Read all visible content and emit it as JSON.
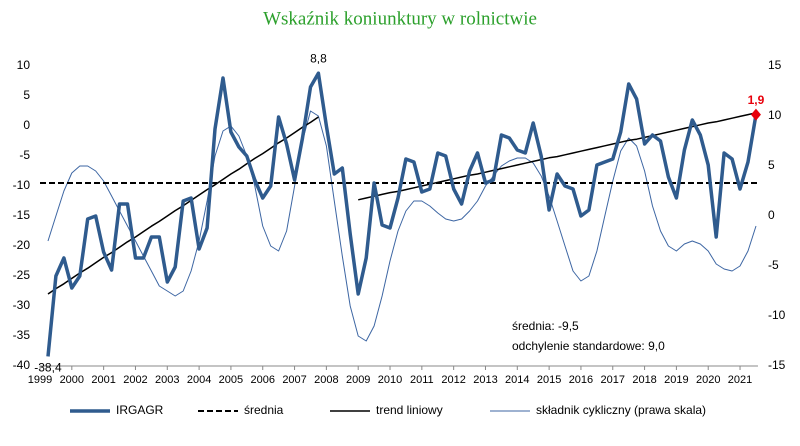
{
  "chart_data": {
    "type": "line",
    "title": "Wskaźnik koniunktury w rolnictwie",
    "categories": [
      "1999",
      null,
      null,
      null,
      "2000",
      null,
      null,
      null,
      "2001",
      null,
      null,
      null,
      "2002",
      null,
      null,
      null,
      "2003",
      null,
      null,
      null,
      "2004",
      null,
      null,
      null,
      "2005",
      null,
      null,
      null,
      "2006",
      null,
      null,
      null,
      "2007",
      null,
      null,
      null,
      "2008",
      null,
      null,
      null,
      "2009",
      null,
      null,
      null,
      "2010",
      null,
      null,
      null,
      "2011",
      null,
      null,
      null,
      "2012",
      null,
      null,
      null,
      "2013",
      null,
      null,
      null,
      "2014",
      null,
      null,
      null,
      "2015",
      null,
      null,
      null,
      "2016",
      null,
      null,
      null,
      "2017",
      null,
      null,
      null,
      "2018",
      null,
      null,
      null,
      "2019",
      null,
      null,
      null,
      "2020",
      null,
      null,
      null,
      "2021",
      null,
      null
    ],
    "ylim": [
      -40,
      10
    ],
    "yticks": [
      -40,
      -35,
      -30,
      -25,
      -20,
      -15,
      -10,
      -5,
      0,
      5,
      10
    ],
    "y2lim": [
      -15,
      15
    ],
    "y2ticks": [
      -15,
      -10,
      -5,
      0,
      5,
      10,
      15
    ],
    "series": [
      {
        "name": "IRGAGR",
        "color": "#2f5b8e",
        "width": 3.5,
        "values": [
          null,
          -38.4,
          -25,
          -22,
          -27,
          -25,
          -15.5,
          -15,
          -21,
          -24,
          -13,
          -13,
          -22,
          -22,
          -18.5,
          -18.5,
          -26,
          -23.5,
          -12.5,
          -12,
          -20.5,
          -17,
          -0.5,
          8,
          -1,
          -3.5,
          -5,
          -9,
          -12,
          -10,
          1.5,
          -3,
          -9,
          -2,
          6.5,
          8.8,
          0,
          -8,
          -7,
          -18,
          -28,
          -22,
          -9.5,
          -16.5,
          -17,
          -12,
          -5.5,
          -6,
          -11,
          -10.5,
          -4.5,
          -5,
          -10.5,
          -13,
          -7.5,
          -4.5,
          -9.5,
          -9,
          -1.5,
          -2,
          -4,
          -4.5,
          0.5,
          -5,
          -14,
          -8,
          -10,
          -10.5,
          -15,
          -14,
          -6.5,
          -6,
          -5.5,
          -1,
          7,
          4.5,
          -3,
          -1.5,
          -2.5,
          -8.5,
          -12,
          -4,
          1,
          -1.5,
          -6.5,
          -18.5,
          -4.5,
          -5.5,
          -10.5,
          -6,
          1.9
        ],
        "value_labels": [
          null,
          "-38,4",
          null,
          null,
          null,
          null,
          null,
          null,
          null,
          null,
          null,
          null,
          null,
          null,
          null,
          null,
          null,
          null,
          null,
          null,
          null,
          null,
          null,
          null,
          null,
          null,
          null,
          null,
          null,
          null,
          null,
          null,
          null,
          null,
          null,
          "8,8",
          null,
          null,
          null,
          null,
          null,
          null,
          null,
          null,
          null,
          null,
          null,
          null,
          null,
          null,
          null,
          null,
          null,
          null,
          null,
          null,
          null,
          null,
          null,
          null,
          null,
          null,
          null,
          null,
          null,
          null,
          null,
          null,
          null,
          null,
          null,
          null,
          null,
          null,
          null,
          null,
          null,
          null,
          null,
          null,
          null,
          null,
          null,
          null,
          null,
          null,
          null,
          null,
          null,
          null,
          "1,9"
        ],
        "highlight_color": "#e8000b"
      },
      {
        "name": "średnia",
        "color": "#000000",
        "width": 2,
        "dash": true,
        "value": -9.5
      },
      {
        "name": "trend liniowy",
        "color": "#000000",
        "width": 1.5,
        "values": [
          null,
          -28.0,
          -27.1,
          -26.3,
          -25.4,
          -24.5,
          -23.7,
          -22.8,
          -21.9,
          -21.1,
          -20.2,
          -19.3,
          -18.5,
          -17.6,
          -16.7,
          -15.9,
          -15.0,
          -14.1,
          -13.3,
          -12.4,
          -11.5,
          -10.6,
          -9.8,
          -8.9,
          -8.0,
          -7.2,
          -6.3,
          -5.4,
          -4.6,
          -3.7,
          -2.8,
          -2.0,
          -1.1,
          -0.2,
          0.6,
          1.5,
          null,
          null,
          null,
          null,
          -12.3,
          -12.0,
          -11.7,
          -11.4,
          -11.1,
          -10.9,
          -10.6,
          -10.3,
          -10.0,
          -9.7,
          -9.4,
          -9.1,
          -8.8,
          -8.5,
          -8.2,
          -8.0,
          -7.7,
          -7.4,
          -7.1,
          -6.8,
          -6.5,
          -6.2,
          -5.9,
          -5.6,
          -5.3,
          -5.1,
          -4.8,
          -4.5,
          -4.2,
          -3.9,
          -3.6,
          -3.3,
          -3.0,
          -2.7,
          -2.4,
          -2.2,
          -1.9,
          -1.6,
          -1.3,
          -1.0,
          -0.7,
          -0.4,
          -0.1,
          0.2,
          0.5,
          0.7,
          1.0,
          1.3,
          1.6,
          1.9,
          2.2
        ]
      },
      {
        "name": "składnik cykliczny (prawa skala)",
        "color": "#3d66a3",
        "width": 1,
        "axis": "y2",
        "values": [
          null,
          -2.5,
          0,
          2.5,
          4.3,
          5,
          5,
          4.5,
          3.5,
          2,
          0.5,
          -1,
          -2.5,
          -4,
          -5.5,
          -7,
          -7.5,
          -8,
          -7.5,
          -5.5,
          -2.5,
          1.5,
          6,
          8.5,
          9,
          8,
          6,
          3,
          -1,
          -3,
          -3.5,
          -1.5,
          3,
          7.5,
          10.5,
          10,
          7,
          1.5,
          -4,
          -9,
          -12,
          -12.5,
          -11,
          -8,
          -4.5,
          -1.5,
          0.5,
          1.5,
          1.5,
          1,
          0.3,
          -0.3,
          -0.5,
          -0.3,
          0.5,
          1.5,
          3,
          4,
          5,
          5.5,
          5.8,
          5.8,
          5.3,
          4,
          2,
          -0.5,
          -3,
          -5.5,
          -6.5,
          -6,
          -3.5,
          0,
          3.5,
          6.5,
          7.8,
          7,
          4.5,
          1,
          -1.5,
          -3,
          -3.5,
          -2.8,
          -2.5,
          -2.8,
          -3.5,
          -4.8,
          -5.3,
          -5.5,
          -5,
          -3.5,
          -1
        ]
      }
    ],
    "annotations": [
      "średnia: -9,5",
      "odchylenie standardowe: 9,0"
    ]
  }
}
